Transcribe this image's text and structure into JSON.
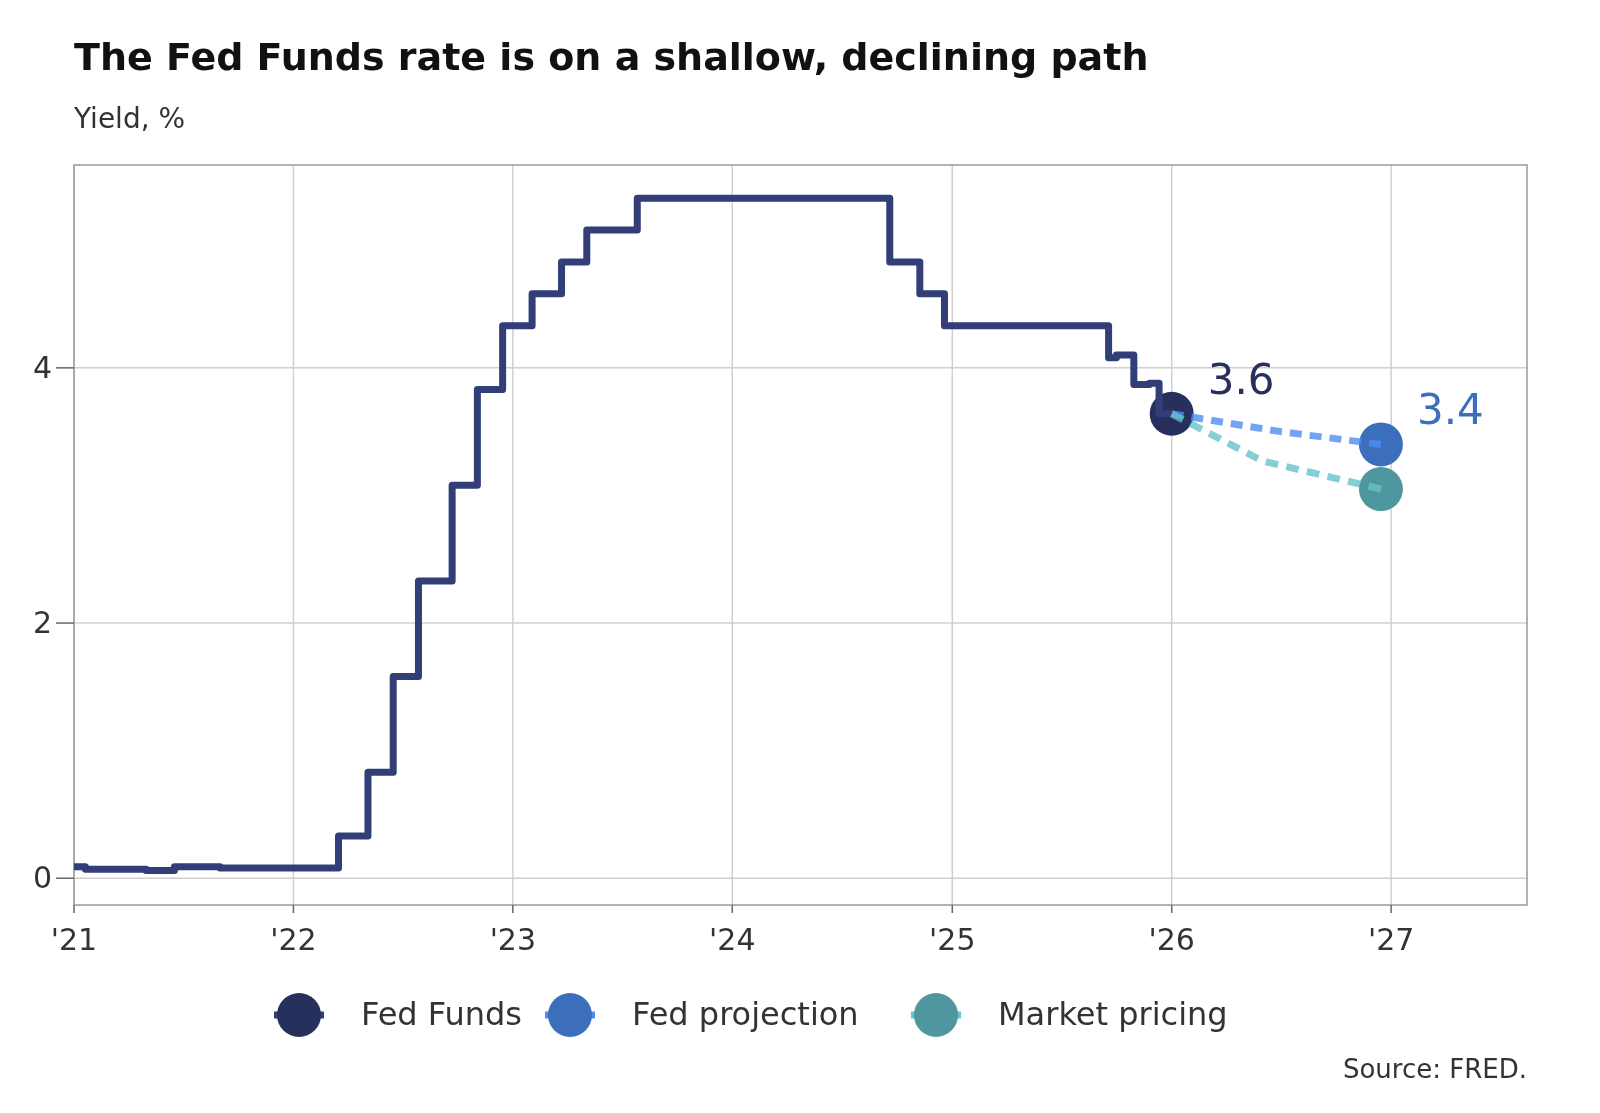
{
  "chart_data": {
    "type": "line",
    "title": "The Fed Funds rate is on a shallow, declining path",
    "subtitle": "Yield, %",
    "xlim": [
      "2021-01-01",
      "2027-08-15"
    ],
    "ylim": [
      -0.21,
      5.59
    ],
    "xticks": [
      {
        "value": "2021-01-01",
        "label": "'21"
      },
      {
        "value": "2022-01-01",
        "label": "'22"
      },
      {
        "value": "2023-01-01",
        "label": "'23"
      },
      {
        "value": "2024-01-01",
        "label": "'24"
      },
      {
        "value": "2025-01-01",
        "label": "'25"
      },
      {
        "value": "2026-01-01",
        "label": "'26"
      },
      {
        "value": "2027-01-01",
        "label": "'27"
      }
    ],
    "yticks": [
      0,
      2,
      4
    ],
    "grid": true,
    "legend": "bottom",
    "series": [
      {
        "name": "Fed Funds",
        "type": "step",
        "color": "#323e78",
        "line_style": "solid",
        "x": [
          "2021-01-01",
          "2021-01-20",
          "2021-03-01",
          "2021-05-01",
          "2021-06-17",
          "2021-07-15",
          "2021-09-01",
          "2021-12-01",
          "2022-03-17",
          "2022-05-05",
          "2022-06-16",
          "2022-07-28",
          "2022-09-22",
          "2022-11-03",
          "2022-12-15",
          "2023-02-02",
          "2023-03-23",
          "2023-05-04",
          "2023-06-20",
          "2023-07-27",
          "2024-09-19",
          "2024-11-08",
          "2024-12-19",
          "2025-09-18",
          "2025-10-01",
          "2025-10-30",
          "2025-11-25",
          "2025-12-11",
          "2026-01-01"
        ],
        "values": [
          0.09,
          0.07,
          0.07,
          0.06,
          0.09,
          0.09,
          0.08,
          0.08,
          0.33,
          0.83,
          1.58,
          2.33,
          3.08,
          3.83,
          4.33,
          4.58,
          4.83,
          5.08,
          5.08,
          5.33,
          4.83,
          4.58,
          4.33,
          4.08,
          4.1,
          3.87,
          3.88,
          3.64,
          3.64
        ],
        "value_labels": [
          null,
          null,
          null,
          null,
          null,
          null,
          null,
          null,
          null,
          null,
          null,
          null,
          null,
          null,
          null,
          null,
          null,
          null,
          null,
          null,
          null,
          null,
          null,
          null,
          null,
          null,
          null,
          null,
          "3.6"
        ]
      },
      {
        "name": "Fed projection",
        "type": "line",
        "color": "#4d8ef0",
        "line_style": "dashed",
        "x": [
          "2026-01-01",
          "2026-07-01",
          "2026-12-15"
        ],
        "values": [
          3.64,
          3.5,
          3.4
        ],
        "value_labels": [
          null,
          null,
          "3.4"
        ]
      },
      {
        "name": "Market pricing",
        "type": "line",
        "color": "#66c2cc",
        "line_style": "dashed",
        "x": [
          "2026-01-01",
          "2026-06-01",
          "2026-12-15"
        ],
        "values": [
          3.64,
          3.27,
          3.05
        ]
      }
    ],
    "annotations": [
      "Source: FRED."
    ]
  }
}
